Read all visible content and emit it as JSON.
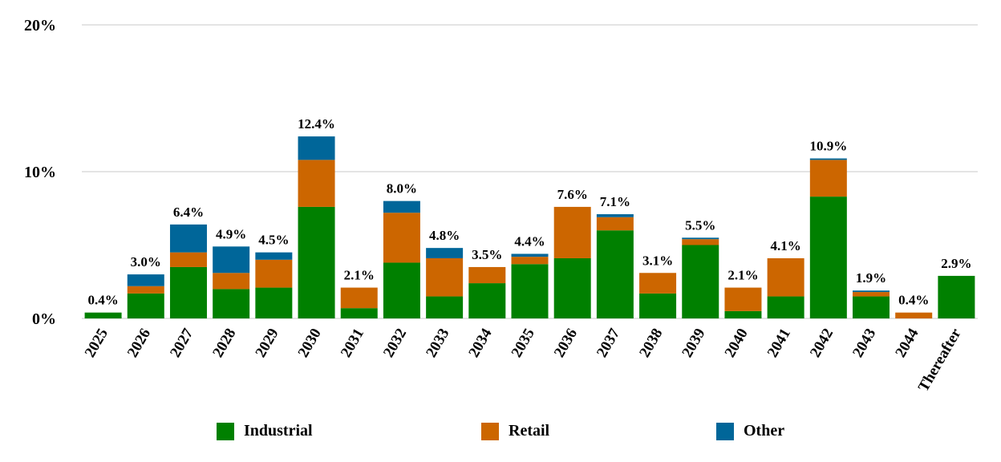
{
  "chart_data": {
    "type": "bar",
    "stacked": true,
    "categories": [
      "2025",
      "2026",
      "2027",
      "2028",
      "2029",
      "2030",
      "2031",
      "2032",
      "2033",
      "2034",
      "2035",
      "2036",
      "2037",
      "2038",
      "2039",
      "2040",
      "2041",
      "2042",
      "2043",
      "2044",
      "Thereafter"
    ],
    "series": [
      {
        "name": "Industrial",
        "color": "#008000",
        "values": [
          0.4,
          1.7,
          3.5,
          2.0,
          2.1,
          7.6,
          0.7,
          3.8,
          1.5,
          2.4,
          3.7,
          4.1,
          6.0,
          1.7,
          5.0,
          0.5,
          1.5,
          8.3,
          1.5,
          0.0,
          2.9
        ]
      },
      {
        "name": "Retail",
        "color": "#cc6600",
        "values": [
          0.0,
          0.5,
          1.0,
          1.1,
          1.9,
          3.2,
          1.4,
          3.4,
          2.6,
          1.1,
          0.5,
          3.5,
          0.9,
          1.4,
          0.4,
          1.6,
          2.6,
          2.5,
          0.3,
          0.4,
          0.0
        ]
      },
      {
        "name": "Other",
        "color": "#006699",
        "values": [
          0.0,
          0.8,
          1.9,
          1.8,
          0.5,
          1.6,
          0.0,
          0.8,
          0.7,
          0.0,
          0.2,
          0.0,
          0.2,
          0.0,
          0.1,
          0.0,
          0.0,
          0.1,
          0.1,
          0.0,
          0.0
        ]
      }
    ],
    "totals": [
      "0.4%",
      "3.0%",
      "6.4%",
      "4.9%",
      "4.5%",
      "12.4%",
      "2.1%",
      "8.0%",
      "4.8%",
      "3.5%",
      "4.4%",
      "7.6%",
      "7.1%",
      "3.1%",
      "5.5%",
      "2.1%",
      "4.1%",
      "10.9%",
      "1.9%",
      "0.4%",
      "2.9%"
    ],
    "y_ticks": [
      {
        "value": 0,
        "label": "0%"
      },
      {
        "value": 10,
        "label": "10%"
      },
      {
        "value": 20,
        "label": "20%"
      }
    ],
    "ylim": [
      0,
      20
    ],
    "grid": true,
    "legend_position": "bottom",
    "title": "",
    "xlabel": "",
    "ylabel": ""
  }
}
